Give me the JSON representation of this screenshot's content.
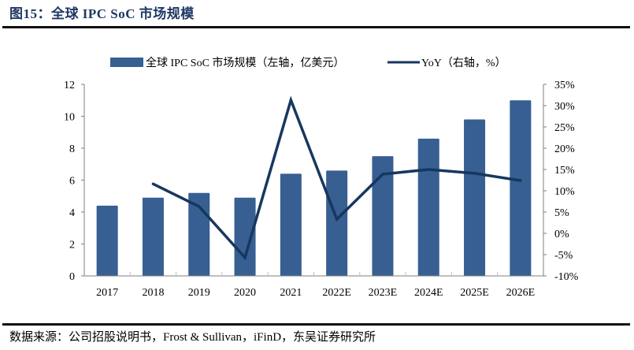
{
  "header": {
    "title": "图15：全球 IPC SoC 市场规模"
  },
  "footer": {
    "source": "数据来源：公司招股说明书，Frost & Sullivan，iFinD，东吴证券研究所"
  },
  "colors": {
    "bar": "#375f92",
    "line": "#17375e",
    "axis": "#7f7f7f"
  },
  "chart_data": {
    "type": "bar+line",
    "title": "图15：全球 IPC SoC 市场规模",
    "categories": [
      "2017",
      "2018",
      "2019",
      "2020",
      "2021",
      "2022E",
      "2023E",
      "2024E",
      "2025E",
      "2026E"
    ],
    "series": [
      {
        "name": "全球 IPC SoC 市场规模（左轴，亿美元）",
        "type": "bar",
        "axis": "left",
        "values": [
          4.4,
          4.9,
          5.2,
          4.9,
          6.4,
          6.6,
          7.5,
          8.6,
          9.8,
          11.0
        ]
      },
      {
        "name": "YoY（右轴，%）",
        "type": "line",
        "axis": "right",
        "values": [
          null,
          11.6,
          6.3,
          -5.7,
          31.3,
          3.3,
          13.9,
          15.0,
          14.1,
          12.4
        ]
      }
    ],
    "left_axis": {
      "ylim": [
        0,
        12
      ],
      "ticks": [
        "0",
        "2",
        "4",
        "6",
        "8",
        "10",
        "12"
      ]
    },
    "right_axis": {
      "ylim": [
        -10,
        35
      ],
      "ticks": [
        "-10%",
        "-5%",
        "0%",
        "5%",
        "10%",
        "15%",
        "20%",
        "25%",
        "30%",
        "35%"
      ]
    },
    "legend": {
      "position": "top",
      "items": [
        "全球 IPC SoC 市场规模（左轴，亿美元）",
        "YoY（右轴，%）"
      ]
    },
    "grid": false,
    "xlabel": "",
    "ylabel": ""
  }
}
